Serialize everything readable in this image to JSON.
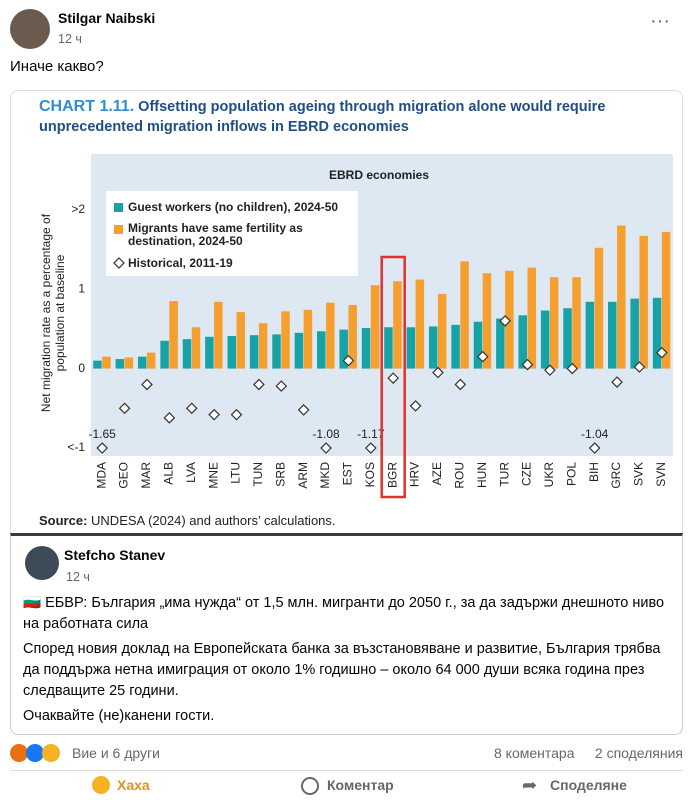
{
  "post": {
    "author": "Stilgar Naibski",
    "time": "12 ч",
    "text": "Иначе какво?"
  },
  "chart_data": {
    "type": "bar",
    "chart_number": "CHART 1.11.",
    "title": "Offsetting population ageing through migration alone would require unprecedented migration inflows in EBRD economies",
    "subtitle": "EBRD economies",
    "ylabel": "Net migration rate as a percentage of population at baseline",
    "source_label": "Source:",
    "source": "UNDESA (2024) and authors’ calculations.",
    "highlight": "BGR",
    "categories": [
      "MDA",
      "GEO",
      "MAR",
      "ALB",
      "LVA",
      "MNE",
      "LTU",
      "TUN",
      "SRB",
      "ARM",
      "MKD",
      "EST",
      "KOS",
      "BGR",
      "HRV",
      "AZE",
      "ROU",
      "HUN",
      "TUR",
      "CZE",
      "UKR",
      "POL",
      "BIH",
      "GRC",
      "SVK",
      "SVN"
    ],
    "series": [
      {
        "name": "Guest workers (no children), 2024-50",
        "type": "bar",
        "color": "#17a2a6",
        "values": [
          0.1,
          0.12,
          0.15,
          0.35,
          0.37,
          0.4,
          0.41,
          0.42,
          0.43,
          0.45,
          0.47,
          0.49,
          0.51,
          0.52,
          0.52,
          0.53,
          0.55,
          0.59,
          0.63,
          0.67,
          0.73,
          0.76,
          0.84,
          0.84,
          0.88,
          0.89
        ]
      },
      {
        "name": "Migrants have same fertility as destination, 2024-50",
        "type": "bar",
        "color": "#f5a02e",
        "values": [
          0.15,
          0.14,
          0.2,
          0.85,
          0.52,
          0.84,
          0.71,
          0.57,
          0.72,
          0.74,
          0.83,
          0.8,
          1.05,
          1.1,
          1.12,
          0.94,
          1.35,
          1.2,
          1.23,
          1.27,
          1.15,
          1.15,
          1.52,
          1.8,
          1.67,
          1.72
        ]
      },
      {
        "name": "Historical, 2011-19",
        "type": "scatter",
        "color": "#333333",
        "values": [
          -1.65,
          -0.5,
          -0.2,
          -0.62,
          -0.5,
          -0.58,
          -0.58,
          -0.2,
          -0.22,
          -0.52,
          -1.08,
          0.1,
          -1.17,
          -0.12,
          -0.47,
          -0.05,
          -0.2,
          0.15,
          0.6,
          0.05,
          -0.02,
          0.0,
          -1.04,
          -0.17,
          0.02,
          0.2
        ],
        "value_labels": [
          "-1.65",
          null,
          null,
          null,
          null,
          null,
          null,
          null,
          null,
          null,
          "-1.08",
          null,
          "-1.17",
          null,
          null,
          null,
          null,
          null,
          null,
          null,
          null,
          null,
          "-1.04",
          null,
          null,
          null
        ]
      }
    ],
    "ylim": [
      -1.1,
      2.7
    ],
    "yticks": [
      {
        "value": -1,
        "label": "<-1"
      },
      0,
      1,
      {
        "value": 2,
        "label": ">2"
      }
    ],
    "grid": false
  },
  "shared_post": {
    "author": "Stefcho Stanev",
    "time": "12 ч",
    "paragraphs": [
      "🇧🇬 ЕБВР: България „има нужда“ от 1,5 млн. мигранти до 2050 г., за да задържи днешното ниво на работната сила",
      "Според новия доклад на Европейската банка за възстановяване и развитие, България трябва да поддържа нетна имиграция от около 1% годишно – около 64 000 души всяка година през следващите 25 години.",
      "Очаквайте (не)канени гости."
    ]
  },
  "footer": {
    "reactions": "Вие и 6 други",
    "comments": "8 коментара",
    "shares": "2 споделяния",
    "actions": [
      "Хаха",
      "Коментар",
      "Споделяне"
    ]
  }
}
